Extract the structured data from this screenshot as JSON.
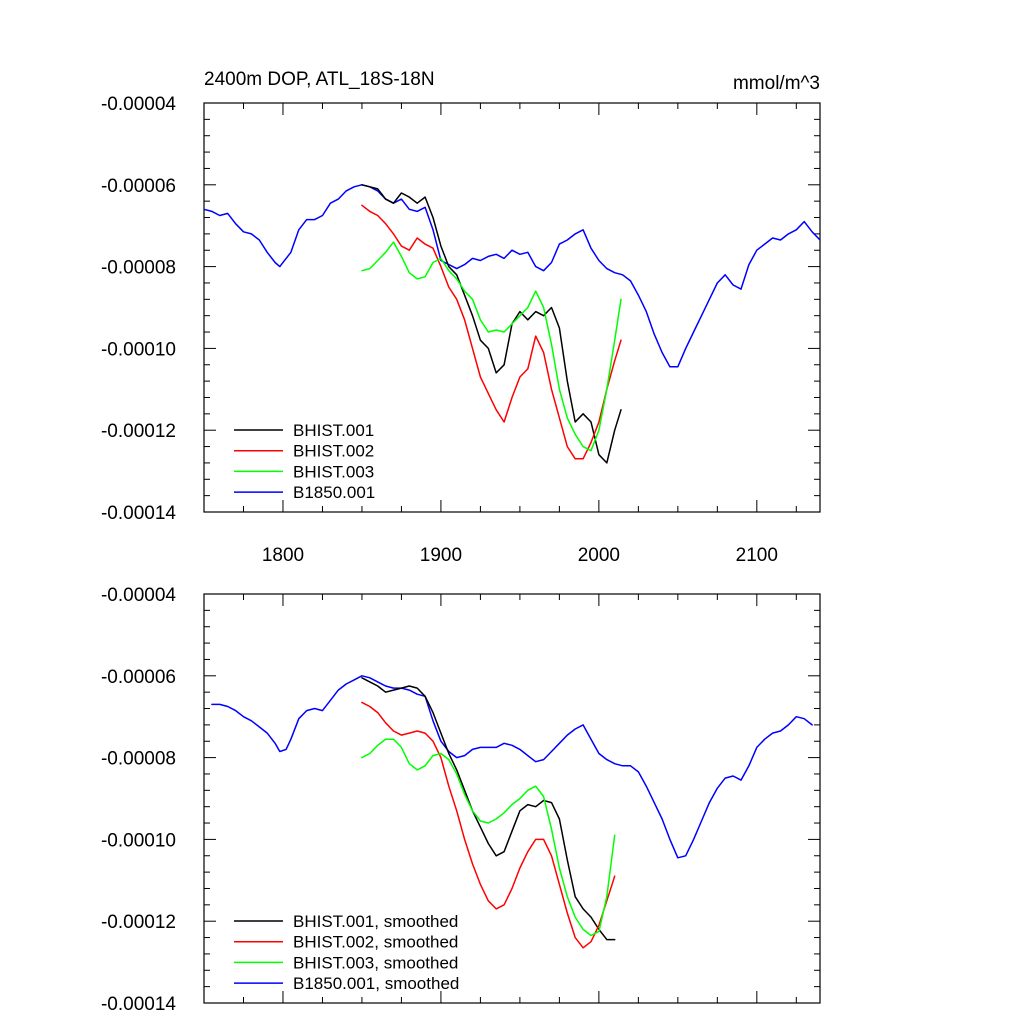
{
  "chart_data": [
    {
      "type": "line",
      "title": "2400m DOP, ATL_18S-18N",
      "units": "mmol/m^3",
      "xlabel": "",
      "ylabel": "",
      "xlim": [
        1750,
        2140
      ],
      "ylim": [
        -0.00014,
        -4e-05
      ],
      "xticks": [
        1800,
        1900,
        2000,
        2100
      ],
      "xtick_labels": [
        "1800",
        "1900",
        "2000",
        "2100"
      ],
      "yticks": [
        -4e-05,
        -6e-05,
        -8e-05,
        -0.0001,
        -0.00012,
        -0.00014
      ],
      "ytick_labels": [
        "-0.00004",
        "-0.00006",
        "-0.00008",
        "-0.00010",
        "-0.00012",
        "-0.00014"
      ],
      "legend_position": "bottom-left",
      "series": [
        {
          "name": "BHIST.001",
          "color": "#000000",
          "x": [
            1850,
            1855,
            1860,
            1865,
            1870,
            1875,
            1880,
            1885,
            1890,
            1895,
            1900,
            1905,
            1910,
            1915,
            1920,
            1925,
            1930,
            1935,
            1940,
            1945,
            1950,
            1955,
            1960,
            1965,
            1970,
            1975,
            1980,
            1985,
            1990,
            1995,
            2000,
            2005,
            2010,
            2014
          ],
          "y": [
            -6e-05,
            -6.05e-05,
            -6.1e-05,
            -6.35e-05,
            -6.45e-05,
            -6.2e-05,
            -6.3e-05,
            -6.45e-05,
            -6.3e-05,
            -6.8e-05,
            -7.5e-05,
            -8e-05,
            -8.2e-05,
            -8.7e-05,
            -9.2e-05,
            -9.8e-05,
            -0.0001,
            -0.000106,
            -0.000104,
            -9.4e-05,
            -9.1e-05,
            -9.3e-05,
            -9.1e-05,
            -9.2e-05,
            -9e-05,
            -9.5e-05,
            -0.000108,
            -0.000118,
            -0.000116,
            -0.000118,
            -0.000126,
            -0.000128,
            -0.00012,
            -0.000115
          ]
        },
        {
          "name": "BHIST.002",
          "color": "#ff0000",
          "x": [
            1850,
            1855,
            1860,
            1865,
            1870,
            1875,
            1880,
            1885,
            1890,
            1895,
            1900,
            1905,
            1910,
            1915,
            1920,
            1925,
            1930,
            1935,
            1940,
            1945,
            1950,
            1955,
            1960,
            1965,
            1970,
            1975,
            1980,
            1985,
            1990,
            1995,
            2000,
            2005,
            2010,
            2014
          ],
          "y": [
            -6.5e-05,
            -6.65e-05,
            -6.75e-05,
            -6.95e-05,
            -7.2e-05,
            -7.5e-05,
            -7.6e-05,
            -7.3e-05,
            -7.45e-05,
            -7.55e-05,
            -8e-05,
            -8.5e-05,
            -8.8e-05,
            -9.3e-05,
            -0.0001,
            -0.000107,
            -0.000111,
            -0.000115,
            -0.000118,
            -0.000112,
            -0.000107,
            -0.000105,
            -9.7e-05,
            -0.000101,
            -0.00011,
            -0.000117,
            -0.000124,
            -0.000127,
            -0.000127,
            -0.000123,
            -0.000118,
            -0.00011,
            -0.000103,
            -9.8e-05
          ]
        },
        {
          "name": "BHIST.003",
          "color": "#00ff00",
          "x": [
            1850,
            1855,
            1860,
            1865,
            1870,
            1875,
            1880,
            1885,
            1890,
            1895,
            1900,
            1905,
            1910,
            1915,
            1920,
            1925,
            1930,
            1935,
            1940,
            1945,
            1950,
            1955,
            1960,
            1965,
            1970,
            1975,
            1980,
            1985,
            1990,
            1995,
            2000,
            2005,
            2010,
            2014
          ],
          "y": [
            -8.1e-05,
            -8.05e-05,
            -7.85e-05,
            -7.65e-05,
            -7.4e-05,
            -7.75e-05,
            -8.15e-05,
            -8.3e-05,
            -8.25e-05,
            -7.9e-05,
            -7.8e-05,
            -8.1e-05,
            -8.3e-05,
            -8.6e-05,
            -8.8e-05,
            -9.3e-05,
            -9.6e-05,
            -9.55e-05,
            -9.6e-05,
            -9.4e-05,
            -9.2e-05,
            -9e-05,
            -8.6e-05,
            -9e-05,
            -9.9e-05,
            -0.00011,
            -0.000117,
            -0.000121,
            -0.000124,
            -0.000125,
            -0.00012,
            -0.00011,
            -9.8e-05,
            -8.8e-05
          ]
        },
        {
          "name": "B1850.001",
          "color": "#0000ff",
          "x": [
            1750,
            1755,
            1760,
            1765,
            1770,
            1775,
            1780,
            1785,
            1790,
            1795,
            1798,
            1805,
            1810,
            1815,
            1820,
            1825,
            1830,
            1835,
            1840,
            1845,
            1850,
            1855,
            1860,
            1865,
            1870,
            1875,
            1880,
            1885,
            1890,
            1895,
            1900,
            1905,
            1910,
            1915,
            1920,
            1925,
            1930,
            1935,
            1940,
            1945,
            1950,
            1955,
            1960,
            1965,
            1970,
            1975,
            1980,
            1985,
            1990,
            1995,
            2000,
            2005,
            2010,
            2015,
            2020,
            2025,
            2030,
            2035,
            2040,
            2045,
            2050,
            2055,
            2060,
            2065,
            2070,
            2075,
            2080,
            2085,
            2090,
            2095,
            2100,
            2105,
            2110,
            2115,
            2120,
            2125,
            2130,
            2135,
            2140
          ],
          "y": [
            -6.6e-05,
            -6.65e-05,
            -6.75e-05,
            -6.7e-05,
            -6.95e-05,
            -7.15e-05,
            -7.2e-05,
            -7.35e-05,
            -7.65e-05,
            -7.9e-05,
            -8e-05,
            -7.65e-05,
            -7.1e-05,
            -6.85e-05,
            -6.85e-05,
            -6.75e-05,
            -6.45e-05,
            -6.35e-05,
            -6.15e-05,
            -6.05e-05,
            -6e-05,
            -6.05e-05,
            -6.15e-05,
            -6.35e-05,
            -6.45e-05,
            -6.35e-05,
            -6.6e-05,
            -6.65e-05,
            -6.55e-05,
            -7.1e-05,
            -7.85e-05,
            -7.95e-05,
            -8.05e-05,
            -7.95e-05,
            -7.8e-05,
            -7.85e-05,
            -7.75e-05,
            -7.7e-05,
            -7.8e-05,
            -7.6e-05,
            -7.7e-05,
            -7.65e-05,
            -8e-05,
            -8.1e-05,
            -7.9e-05,
            -7.45e-05,
            -7.35e-05,
            -7.2e-05,
            -7.1e-05,
            -7.55e-05,
            -7.85e-05,
            -8.05e-05,
            -8.15e-05,
            -8.2e-05,
            -8.35e-05,
            -8.7e-05,
            -9.1e-05,
            -9.65e-05,
            -0.000101,
            -0.0001045,
            -0.0001045,
            -0.0001,
            -9.6e-05,
            -9.2e-05,
            -8.8e-05,
            -8.4e-05,
            -8.2e-05,
            -8.45e-05,
            -8.55e-05,
            -7.95e-05,
            -7.6e-05,
            -7.45e-05,
            -7.3e-05,
            -7.35e-05,
            -7.2e-05,
            -7.1e-05,
            -6.9e-05,
            -7.15e-05,
            -7.35e-05
          ]
        }
      ]
    },
    {
      "type": "line",
      "title": "",
      "xlabel": "",
      "ylabel": "",
      "xlim": [
        1750,
        2140
      ],
      "ylim": [
        -0.00014,
        -4e-05
      ],
      "xticks": [
        1800,
        1900,
        2000,
        2100
      ],
      "xtick_labels": [],
      "yticks": [
        -4e-05,
        -6e-05,
        -8e-05,
        -0.0001,
        -0.00012,
        -0.00014
      ],
      "ytick_labels": [
        "-0.00004",
        "-0.00006",
        "-0.00008",
        "-0.00010",
        "-0.00012",
        "-0.00014"
      ],
      "legend_position": "bottom-left",
      "series": [
        {
          "name": "BHIST.001, smoothed",
          "color": "#000000",
          "x": [
            1850,
            1855,
            1860,
            1865,
            1870,
            1875,
            1880,
            1885,
            1890,
            1895,
            1900,
            1905,
            1910,
            1915,
            1920,
            1925,
            1930,
            1935,
            1940,
            1945,
            1950,
            1955,
            1960,
            1965,
            1970,
            1975,
            1980,
            1985,
            1990,
            1995,
            2000,
            2005,
            2010
          ],
          "y": [
            -6.05e-05,
            -6.15e-05,
            -6.25e-05,
            -6.4e-05,
            -6.35e-05,
            -6.3e-05,
            -6.25e-05,
            -6.3e-05,
            -6.5e-05,
            -6.9e-05,
            -7.4e-05,
            -7.9e-05,
            -8.3e-05,
            -8.8e-05,
            -9.3e-05,
            -9.7e-05,
            -0.000101,
            -0.000104,
            -0.000103,
            -9.8e-05,
            -9.3e-05,
            -9.15e-05,
            -9.2e-05,
            -9.05e-05,
            -9.1e-05,
            -9.5e-05,
            -0.000105,
            -0.000114,
            -0.000117,
            -0.000119,
            -0.000122,
            -0.0001245,
            -0.0001245
          ]
        },
        {
          "name": "BHIST.002, smoothed",
          "color": "#ff0000",
          "x": [
            1850,
            1855,
            1860,
            1865,
            1870,
            1875,
            1880,
            1885,
            1890,
            1895,
            1900,
            1905,
            1910,
            1915,
            1920,
            1925,
            1930,
            1935,
            1940,
            1945,
            1950,
            1955,
            1960,
            1965,
            1970,
            1975,
            1980,
            1985,
            1990,
            1995,
            2000,
            2005,
            2010
          ],
          "y": [
            -6.65e-05,
            -6.75e-05,
            -6.9e-05,
            -7.15e-05,
            -7.35e-05,
            -7.45e-05,
            -7.4e-05,
            -7.35e-05,
            -7.4e-05,
            -7.6e-05,
            -8e-05,
            -8.7e-05,
            -9.3e-05,
            -0.0001,
            -0.000106,
            -0.000111,
            -0.000115,
            -0.000117,
            -0.000116,
            -0.000112,
            -0.000107,
            -0.000103,
            -0.0001,
            -0.0001,
            -0.000104,
            -0.000111,
            -0.000118,
            -0.000124,
            -0.0001265,
            -0.000125,
            -0.000121,
            -0.000115,
            -0.000109
          ]
        },
        {
          "name": "BHIST.003, smoothed",
          "color": "#00ff00",
          "x": [
            1850,
            1855,
            1860,
            1865,
            1870,
            1875,
            1880,
            1885,
            1890,
            1895,
            1900,
            1905,
            1910,
            1915,
            1920,
            1925,
            1930,
            1935,
            1940,
            1945,
            1950,
            1955,
            1960,
            1965,
            1970,
            1975,
            1980,
            1985,
            1990,
            1995,
            2000,
            2005,
            2010
          ],
          "y": [
            -8e-05,
            -7.9e-05,
            -7.7e-05,
            -7.55e-05,
            -7.55e-05,
            -7.75e-05,
            -8.15e-05,
            -8.3e-05,
            -8.2e-05,
            -7.95e-05,
            -7.9e-05,
            -8.05e-05,
            -8.4e-05,
            -8.9e-05,
            -9.3e-05,
            -9.55e-05,
            -9.6e-05,
            -9.5e-05,
            -9.35e-05,
            -9.15e-05,
            -9e-05,
            -8.8e-05,
            -8.7e-05,
            -8.95e-05,
            -9.75e-05,
            -0.000107,
            -0.000114,
            -0.000119,
            -0.000122,
            -0.0001235,
            -0.0001225,
            -0.000114,
            -9.9e-05
          ]
        },
        {
          "name": "B1850.001, smoothed",
          "color": "#0000ff",
          "x": [
            1755,
            1760,
            1765,
            1770,
            1775,
            1780,
            1785,
            1790,
            1795,
            1798,
            1802,
            1805,
            1810,
            1815,
            1820,
            1825,
            1830,
            1835,
            1840,
            1845,
            1850,
            1855,
            1860,
            1865,
            1870,
            1875,
            1880,
            1885,
            1890,
            1895,
            1900,
            1905,
            1910,
            1915,
            1920,
            1925,
            1930,
            1935,
            1940,
            1945,
            1950,
            1955,
            1960,
            1965,
            1970,
            1975,
            1980,
            1985,
            1990,
            1995,
            2000,
            2005,
            2010,
            2015,
            2020,
            2025,
            2030,
            2035,
            2040,
            2045,
            2050,
            2055,
            2060,
            2065,
            2070,
            2075,
            2080,
            2085,
            2090,
            2095,
            2100,
            2105,
            2110,
            2115,
            2120,
            2125,
            2130,
            2135
          ],
          "y": [
            -6.7e-05,
            -6.7e-05,
            -6.75e-05,
            -6.85e-05,
            -7e-05,
            -7.1e-05,
            -7.25e-05,
            -7.4e-05,
            -7.65e-05,
            -7.85e-05,
            -7.8e-05,
            -7.55e-05,
            -7.05e-05,
            -6.85e-05,
            -6.8e-05,
            -6.85e-05,
            -6.6e-05,
            -6.35e-05,
            -6.2e-05,
            -6.1e-05,
            -6e-05,
            -6.05e-05,
            -6.15e-05,
            -6.25e-05,
            -6.3e-05,
            -6.3e-05,
            -6.35e-05,
            -6.45e-05,
            -6.5e-05,
            -7.1e-05,
            -7.6e-05,
            -7.85e-05,
            -8e-05,
            -7.95e-05,
            -7.8e-05,
            -7.75e-05,
            -7.75e-05,
            -7.75e-05,
            -7.65e-05,
            -7.7e-05,
            -7.8e-05,
            -7.95e-05,
            -8.1e-05,
            -8.05e-05,
            -7.85e-05,
            -7.65e-05,
            -7.45e-05,
            -7.3e-05,
            -7.2e-05,
            -7.55e-05,
            -7.9e-05,
            -8.05e-05,
            -8.15e-05,
            -8.2e-05,
            -8.2e-05,
            -8.35e-05,
            -8.7e-05,
            -9.1e-05,
            -9.5e-05,
            -0.0001,
            -0.0001045,
            -0.000104,
            -0.0001,
            -9.55e-05,
            -9.1e-05,
            -8.75e-05,
            -8.5e-05,
            -8.45e-05,
            -8.55e-05,
            -8.2e-05,
            -7.75e-05,
            -7.55e-05,
            -7.4e-05,
            -7.35e-05,
            -7.2e-05,
            -7e-05,
            -7.05e-05,
            -7.2e-05
          ]
        }
      ]
    }
  ]
}
